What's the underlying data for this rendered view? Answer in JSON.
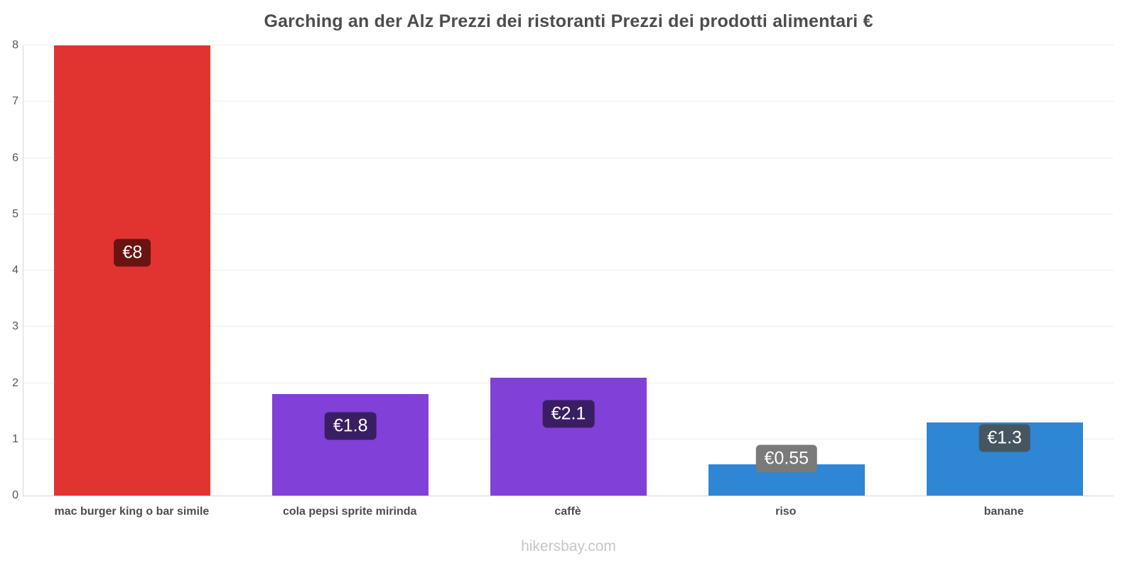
{
  "title": "Garching an der Alz Prezzi dei ristoranti Prezzi dei prodotti alimentari €",
  "footer": {
    "text": "hikersbay.com"
  },
  "chart_data": {
    "type": "bar",
    "title": "Garching an der Alz Prezzi dei ristoranti Prezzi dei prodotti alimentari €",
    "categories": [
      "mac burger king o bar simile",
      "cola pepsi sprite mirinda",
      "caffè",
      "riso",
      "banane"
    ],
    "values": [
      8,
      1.8,
      2.1,
      0.55,
      1.3
    ],
    "value_labels": [
      "€8",
      "€1.8",
      "€2.1",
      "€0.55",
      "€1.3"
    ],
    "bar_colors": [
      "#e13430",
      "#8140d8",
      "#8140d8",
      "#2e86d5",
      "#2e86d5"
    ],
    "label_bg_colors": [
      "#6a1412",
      "#3a1e63",
      "#3a1e63",
      "#7a7a7a",
      "#465660"
    ],
    "label_center_frac": [
      0.54,
      0.69,
      0.69,
      1.2,
      0.79
    ],
    "currency": "€",
    "xlabel": "",
    "ylabel": "",
    "ylim": [
      0,
      8
    ],
    "yticks": [
      0,
      1,
      2,
      3,
      4,
      5,
      6,
      7,
      8
    ],
    "grid": true,
    "legend": false
  }
}
